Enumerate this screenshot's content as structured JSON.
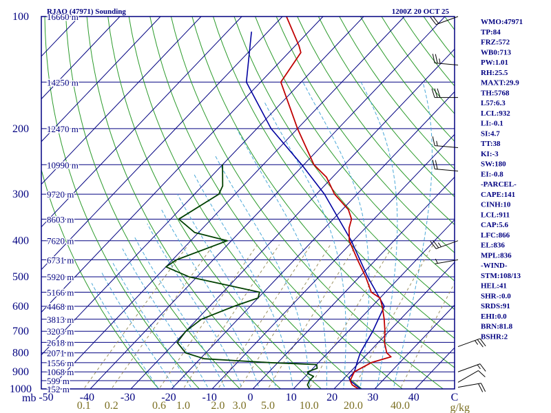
{
  "header": {
    "station": "RJAO (47971) Sounding",
    "time": "1200Z 20 OCT 25"
  },
  "indices": [
    "WMO:47971",
    "TP:84",
    "FRZ:572",
    "WB0:713",
    "PW:1.01",
    "RH:25.5",
    "MAXT:29.9",
    "TH:5768",
    "L57:6.3",
    "LCL:932",
    "LI:-0.1",
    "SI:4.7",
    "TT:38",
    "KI:-3",
    "SW:180",
    "EI:-0.8",
    "-PARCEL-",
    "CAPE:141",
    "CINH:10",
    "LCL:911",
    "CAP:5.6",
    "LFC:866",
    "EL:836",
    "MPL:836",
    "-WIND-",
    "STM:108/13",
    "HEL:41",
    "SHR-:0.0",
    "SRDS:91",
    "EHI:0.0",
    "BRN:81.8",
    "BSHR:2"
  ],
  "colors": {
    "frame": "#000080",
    "isobar": "#000080",
    "isotherm": "#000080",
    "dry_adiabat": "#2a9a2a",
    "moist_adiabat": "#4aa8d8",
    "mixing_ratio": "#9a9060",
    "temperature": "#c00000",
    "dewpoint": "#004000",
    "parcel": "#0000a0",
    "barb": "#000000"
  },
  "chart_data": {
    "type": "skew-t",
    "title": "RJAO (47971) Sounding",
    "valid_time": "1200Z 20 OCT 25",
    "xlabel_prefix": "mb",
    "mixing_ratio_unit": "g/kg",
    "x_tick_labels": [
      "-50",
      "-40",
      "-30",
      "-20",
      "-10",
      "0",
      "10",
      "20",
      "30",
      "40",
      "C"
    ],
    "pressure_levels": [
      {
        "p": 100,
        "label": "100",
        "height": "16660 m"
      },
      {
        "p": 150,
        "label": "",
        "height": "14250 m"
      },
      {
        "p": 200,
        "label": "200",
        "height": "12470 m"
      },
      {
        "p": 250,
        "label": "",
        "height": "10990 m"
      },
      {
        "p": 300,
        "label": "300",
        "height": "9720 m"
      },
      {
        "p": 350,
        "label": "",
        "height": "8603 m"
      },
      {
        "p": 400,
        "label": "400",
        "height": "7620 m"
      },
      {
        "p": 450,
        "label": "",
        "height": "6731 m"
      },
      {
        "p": 500,
        "label": "500",
        "height": "5920 m"
      },
      {
        "p": 550,
        "label": "",
        "height": "5166 m"
      },
      {
        "p": 600,
        "label": "600",
        "height": "4468 m"
      },
      {
        "p": 650,
        "label": "",
        "height": "3813 m"
      },
      {
        "p": 700,
        "label": "700",
        "height": "3203 m"
      },
      {
        "p": 750,
        "label": "",
        "height": "2618 m"
      },
      {
        "p": 800,
        "label": "800",
        "height": "2071 m"
      },
      {
        "p": 850,
        "label": "",
        "height": "1556 m"
      },
      {
        "p": 900,
        "label": "900",
        "height": "1068 m"
      },
      {
        "p": 950,
        "label": "",
        "height": "599 m"
      },
      {
        "p": 1000,
        "label": "1000",
        "height": "152 m"
      }
    ],
    "mixing_ratio_lines": [
      {
        "w": 0.1,
        "label": "0.1"
      },
      {
        "w": 0.2,
        "label": "0.2"
      },
      {
        "w": 0.6,
        "label": "0.6"
      },
      {
        "w": 1.0,
        "label": "1.0"
      },
      {
        "w": 2.0,
        "label": "2.0"
      },
      {
        "w": 3.0,
        "label": "3.0"
      },
      {
        "w": 5.0,
        "label": "5.0"
      },
      {
        "w": 10.0,
        "label": "10.0"
      },
      {
        "w": 20.0,
        "label": "20.0"
      },
      {
        "w": 40.0,
        "label": "40.0"
      }
    ],
    "temperature": [
      [
        1010,
        28.5
      ],
      [
        1000,
        26.0
      ],
      [
        975,
        23.5
      ],
      [
        950,
        22.0
      ],
      [
        925,
        21.5
      ],
      [
        900,
        21.0
      ],
      [
        850,
        23.0
      ],
      [
        820,
        26.5
      ],
      [
        800,
        24.5
      ],
      [
        750,
        21.5
      ],
      [
        700,
        19.0
      ],
      [
        650,
        16.0
      ],
      [
        600,
        12.5
      ],
      [
        570,
        10.0
      ],
      [
        550,
        6.5
      ],
      [
        500,
        1.5
      ],
      [
        450,
        -4.5
      ],
      [
        400,
        -11.0
      ],
      [
        370,
        -14.0
      ],
      [
        350,
        -15.5
      ],
      [
        330,
        -18.5
      ],
      [
        300,
        -25.5
      ],
      [
        270,
        -31.5
      ],
      [
        250,
        -37.5
      ],
      [
        200,
        -50.0
      ],
      [
        150,
        -65.0
      ],
      [
        125,
        -67.0
      ],
      [
        120,
        -69.0
      ],
      [
        100,
        -79.0
      ]
    ],
    "dewpoint": [
      [
        1000,
        14.0
      ],
      [
        975,
        12.5
      ],
      [
        950,
        12.0
      ],
      [
        925,
        12.0
      ],
      [
        910,
        10.0
      ],
      [
        900,
        9.5
      ],
      [
        880,
        11.0
      ],
      [
        860,
        10.0
      ],
      [
        850,
        -2.0
      ],
      [
        830,
        -19.0
      ],
      [
        800,
        -25.0
      ],
      [
        750,
        -29.5
      ],
      [
        700,
        -30.0
      ],
      [
        650,
        -29.0
      ],
      [
        600,
        -24.0
      ],
      [
        570,
        -20.0
      ],
      [
        550,
        -21.0
      ],
      [
        500,
        -42.0
      ],
      [
        470,
        -50.0
      ],
      [
        450,
        -49.0
      ],
      [
        400,
        -41.0
      ],
      [
        380,
        -51.0
      ],
      [
        350,
        -58.0
      ],
      [
        300,
        -54.0
      ],
      [
        285,
        -55.0
      ],
      [
        250,
        -60.0
      ]
    ],
    "parcel": [
      [
        1010,
        28.5
      ],
      [
        1000,
        26.5
      ],
      [
        950,
        22.0
      ],
      [
        932,
        21.0
      ],
      [
        900,
        21.0
      ],
      [
        850,
        19.5
      ],
      [
        800,
        18.0
      ],
      [
        700,
        16.0
      ],
      [
        600,
        13.0
      ],
      [
        500,
        2.0
      ],
      [
        400,
        -10.5
      ],
      [
        300,
        -28.0
      ],
      [
        250,
        -40.5
      ],
      [
        200,
        -56.5
      ],
      [
        150,
        -73.5
      ],
      [
        110,
        -84.0
      ]
    ],
    "wind_barbs": [
      {
        "p": 990,
        "dir": 80,
        "kt": 20
      },
      {
        "p": 960,
        "dir": 60,
        "kt": 10
      },
      {
        "p": 900,
        "dir": 70,
        "kt": 15
      },
      {
        "p": 770,
        "dir": 70,
        "kt": 25
      },
      {
        "p": 450,
        "dir": 260,
        "kt": 5
      },
      {
        "p": 400,
        "dir": 250,
        "kt": 25
      },
      {
        "p": 260,
        "dir": 275,
        "kt": 20
      },
      {
        "p": 225,
        "dir": 275,
        "kt": 15
      },
      {
        "p": 165,
        "dir": 270,
        "kt": 30
      },
      {
        "p": 135,
        "dir": 275,
        "kt": 25
      },
      {
        "p": 100,
        "dir": 250,
        "kt": 20
      }
    ]
  }
}
